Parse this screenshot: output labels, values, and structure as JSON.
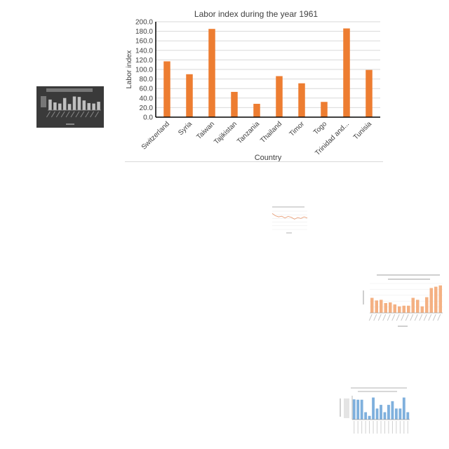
{
  "main_chart": {
    "title": "Labor index during the year 1961",
    "xlabel": "Country",
    "ylabel": "Labor index",
    "bar_color": "#ed7d31",
    "chart_data": {
      "type": "bar",
      "title": "Labor index during the year 1961",
      "xlabel": "Country",
      "ylabel": "Labor index",
      "ylim": [
        0,
        200
      ],
      "yticks": [
        "0.0",
        "20.0",
        "40.0",
        "60.0",
        "80.0",
        "100.0",
        "120.0",
        "140.0",
        "160.0",
        "180.0",
        "200.0"
      ],
      "grid": true,
      "categories": [
        "Switzerland",
        "Syria",
        "Taiwan",
        "Tajikistan",
        "Tanzania",
        "Thailand",
        "Timor",
        "Togo",
        "Trinidad and...",
        "Tunisia"
      ],
      "values": [
        117,
        90,
        185,
        53,
        28,
        86,
        71,
        32,
        186,
        99
      ]
    }
  },
  "thumbnails": {
    "dark_bar": {
      "bg_color": "#3a3a3a",
      "bar_color": "#bfbfbf",
      "values": [
        48,
        35,
        30,
        55,
        28,
        62,
        60,
        44,
        32,
        30,
        38
      ]
    },
    "line": {
      "line_color": "#e8a07a",
      "values": [
        70,
        60,
        55,
        58,
        50,
        57,
        53,
        45,
        52,
        48,
        55,
        50
      ]
    },
    "peach_bar": {
      "bar_color": "#f4b183",
      "values": [
        23,
        19,
        20,
        15,
        16,
        13,
        10,
        11,
        11,
        23,
        20,
        10,
        24,
        38,
        40,
        42
      ]
    },
    "blue_bar": {
      "bar_color": "#7fb0dd",
      "values": [
        110,
        108,
        108,
        40,
        20,
        120,
        60,
        80,
        40,
        80,
        100,
        60,
        60,
        120,
        40
      ]
    }
  }
}
